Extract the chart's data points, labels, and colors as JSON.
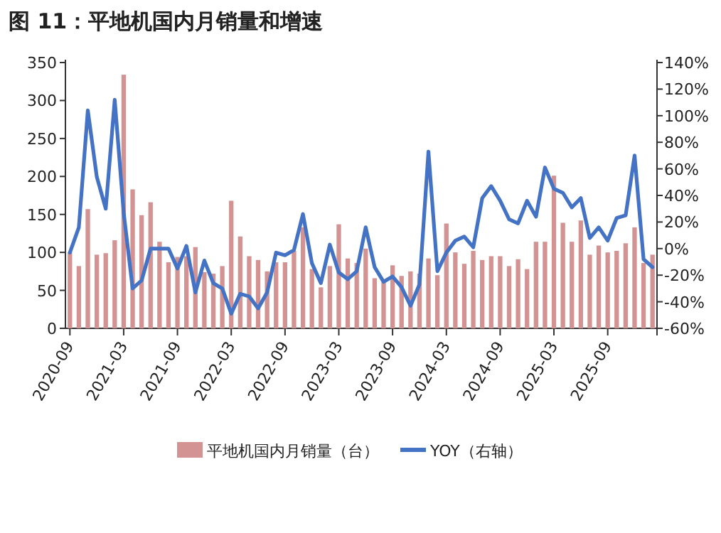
{
  "chart_data": {
    "type": "bar",
    "title": "图 11：平地机国内月销量和增速",
    "categories": [
      "2020-09",
      null,
      null,
      null,
      null,
      null,
      "2021-03",
      null,
      null,
      null,
      null,
      null,
      "2021-09",
      null,
      null,
      null,
      null,
      null,
      "2022-03",
      null,
      null,
      null,
      null,
      null,
      "2022-09",
      null,
      null,
      null,
      null,
      null,
      "2023-03",
      null,
      null,
      null,
      null,
      null,
      "2023-09",
      null,
      null,
      null,
      null,
      null,
      "2024-03",
      null,
      null,
      null,
      null,
      null,
      "2024-09",
      null,
      null,
      null,
      null,
      null,
      "2025-03",
      null,
      null,
      null,
      null,
      null,
      "2025-09",
      null,
      null,
      null,
      null,
      null
    ],
    "series": [
      {
        "name": "平地机国内月销量（台）",
        "color": "#d39393",
        "values": [
          100,
          82,
          157,
          97,
          99,
          116,
          334,
          183,
          149,
          166,
          114,
          87,
          94,
          95,
          107,
          74,
          72,
          82,
          168,
          121,
          95,
          90,
          75,
          87,
          87,
          102,
          133,
          78,
          54,
          82,
          137,
          92,
          86,
          105,
          66,
          61,
          83,
          69,
          75,
          72,
          92,
          70,
          138,
          100,
          85,
          102,
          90,
          95,
          95,
          82,
          91,
          78,
          114,
          114,
          201,
          139,
          114,
          142,
          97,
          109,
          100,
          102,
          112,
          133,
          86,
          97
        ]
      },
      {
        "name": "YOY（右轴）",
        "type": "line",
        "axis": "y2",
        "color": "#4472c4",
        "values": [
          -3,
          16,
          104,
          54,
          30,
          112,
          27,
          -30,
          -24,
          0,
          0,
          0,
          -15,
          2,
          -33,
          -9,
          -26,
          -30,
          -49,
          -34,
          -36,
          -45,
          -33,
          -3,
          -5,
          -1,
          26,
          -11,
          -26,
          3,
          -18,
          -23,
          -17,
          16,
          -14,
          -25,
          -21,
          -29,
          -43,
          -27,
          73,
          -17,
          -3,
          6,
          9,
          1,
          38,
          47,
          36,
          22,
          19,
          36,
          24,
          61,
          45,
          42,
          31,
          38,
          8,
          16,
          6,
          23,
          25,
          70,
          -8,
          -14
        ]
      }
    ],
    "ylim": [
      0,
      350
    ],
    "yticks": [
      0,
      50,
      100,
      150,
      200,
      250,
      300,
      350
    ],
    "y2lim": [
      -60,
      140
    ],
    "y2ticks": [
      {
        "value": -60,
        "label": "-60%"
      },
      {
        "value": -40,
        "label": "-40%"
      },
      {
        "value": -20,
        "label": "-20%"
      },
      {
        "value": 0,
        "label": "0%"
      },
      {
        "value": 20,
        "label": "20%"
      },
      {
        "value": 40,
        "label": "40%"
      },
      {
        "value": 60,
        "label": "60%"
      },
      {
        "value": 80,
        "label": "80%"
      },
      {
        "value": 100,
        "label": "100%"
      },
      {
        "value": 120,
        "label": "120%"
      },
      {
        "value": 140,
        "label": "140%"
      }
    ],
    "legend": "bottom"
  }
}
